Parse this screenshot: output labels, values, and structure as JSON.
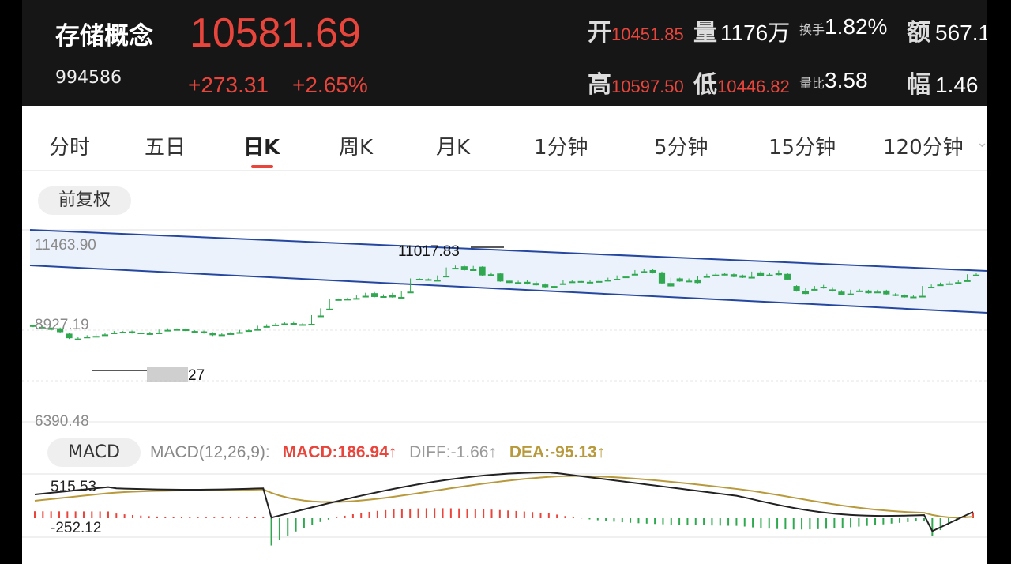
{
  "header": {
    "name": "存储概念",
    "code": "994586",
    "price": "10581.69",
    "change": "+273.31",
    "change_pct": "+2.65%",
    "stats": {
      "open_label": "开",
      "open_value": "10451.85",
      "volume_label": "量",
      "volume_value": "1176万",
      "turnover_label": "换手",
      "turnover_value": "1.82%",
      "amount_label": "额",
      "amount_value": "567.1",
      "high_label": "高",
      "high_value": "10597.50",
      "low_label": "低",
      "low_value": "10446.82",
      "vol_ratio_label": "量比",
      "vol_ratio_value": "3.58",
      "amplitude_label": "幅",
      "amplitude_value": "1.46"
    }
  },
  "tabs": [
    "分时",
    "五日",
    "日K",
    "周K",
    "月K",
    "1分钟",
    "5分钟",
    "15分钟",
    "120分钟"
  ],
  "active_tab": "日K",
  "adjust_button": "前复权",
  "chart": {
    "y_labels": [
      "11463.90",
      "8927.19",
      "6390.48"
    ],
    "max_annotation": "11017.83",
    "min_annotation": "27"
  },
  "macd": {
    "button": "MACD",
    "params": "MACD(12,26,9):",
    "macd": "MACD:186.94↑",
    "diff": "DIFF:-1.66↑",
    "dea": "DEA:-95.13↑",
    "y_top": "515.53",
    "y_bottom": "-252.12"
  },
  "colors": {
    "up": "#e8453c",
    "down": "#2fa84f",
    "channel": "#2547a0",
    "dea": "#b89a3c"
  },
  "chart_data": {
    "type": "candlestick",
    "ylim": [
      6390.48,
      11463.9
    ],
    "candles": [
      [
        8950,
        8950,
        8900,
        8890
      ],
      [
        8900,
        8930,
        8880,
        8870
      ],
      [
        8880,
        8860,
        8820,
        8800
      ],
      [
        8860,
        8880,
        8760,
        8750
      ],
      [
        8720,
        8730,
        8600,
        8580
      ],
      [
        8590,
        8640,
        8580,
        8560
      ],
      [
        8640,
        8680,
        8630,
        8620
      ],
      [
        8660,
        8720,
        8650,
        8640
      ],
      [
        8700,
        8740,
        8690,
        8680
      ],
      [
        8750,
        8790,
        8740,
        8730
      ],
      [
        8770,
        8790,
        8760,
        8750
      ],
      [
        8780,
        8800,
        8740,
        8720
      ],
      [
        8750,
        8770,
        8730,
        8710
      ],
      [
        8730,
        8770,
        8720,
        8710
      ],
      [
        8750,
        8830,
        8740,
        8730
      ],
      [
        8820,
        8860,
        8810,
        8800
      ],
      [
        8840,
        8860,
        8830,
        8820
      ],
      [
        8840,
        8860,
        8790,
        8780
      ],
      [
        8790,
        8810,
        8760,
        8750
      ],
      [
        8780,
        8800,
        8740,
        8720
      ],
      [
        8740,
        8760,
        8680,
        8660
      ],
      [
        8700,
        8750,
        8690,
        8680
      ],
      [
        8730,
        8770,
        8720,
        8710
      ],
      [
        8760,
        8820,
        8750,
        8740
      ],
      [
        8810,
        8850,
        8800,
        8790
      ],
      [
        8840,
        8930,
        8830,
        8820
      ],
      [
        8920,
        8970,
        8910,
        8900
      ],
      [
        8960,
        9000,
        8950,
        8940
      ],
      [
        8990,
        9020,
        8980,
        8970
      ],
      [
        9000,
        9030,
        8970,
        8960
      ],
      [
        8970,
        9000,
        8960,
        8950
      ],
      [
        8980,
        9210,
        8970,
        8960
      ],
      [
        9200,
        9390,
        9190,
        9180
      ],
      [
        9380,
        9640,
        9370,
        9360
      ],
      [
        9630,
        9650,
        9610,
        9600
      ],
      [
        9640,
        9670,
        9630,
        9620
      ],
      [
        9660,
        9730,
        9650,
        9640
      ],
      [
        9720,
        9800,
        9710,
        9700
      ],
      [
        9790,
        9820,
        9690,
        9680
      ],
      [
        9710,
        9760,
        9700,
        9690
      ],
      [
        9750,
        9800,
        9680,
        9670
      ],
      [
        9690,
        9840,
        9680,
        9670
      ],
      [
        9830,
        10180,
        9820,
        9810
      ],
      [
        10170,
        10190,
        10150,
        10140
      ],
      [
        10160,
        10180,
        10130,
        10120
      ],
      [
        10140,
        10260,
        10130,
        10120
      ],
      [
        10250,
        10470,
        10240,
        10230
      ],
      [
        10460,
        10520,
        10440,
        10430
      ],
      [
        10500,
        10550,
        10400,
        10380
      ],
      [
        10420,
        10510,
        10410,
        10400
      ],
      [
        10490,
        10500,
        10260,
        10250
      ],
      [
        10290,
        10340,
        10280,
        10270
      ],
      [
        10310,
        10320,
        10100,
        10090
      ],
      [
        10120,
        10150,
        10060,
        10050
      ],
      [
        10080,
        10120,
        10050,
        10040
      ],
      [
        10090,
        10140,
        10030,
        10020
      ],
      [
        10060,
        10100,
        10000,
        9990
      ],
      [
        10020,
        10050,
        9950,
        9940
      ],
      [
        9980,
        10080,
        9970,
        9960
      ],
      [
        10050,
        10130,
        10040,
        10030
      ],
      [
        10100,
        10140,
        10090,
        10080
      ],
      [
        10110,
        10150,
        10070,
        10060
      ],
      [
        10090,
        10130,
        10080,
        10070
      ],
      [
        10110,
        10160,
        10100,
        10090
      ],
      [
        10140,
        10200,
        10130,
        10120
      ],
      [
        10170,
        10260,
        10160,
        10150
      ],
      [
        10230,
        10320,
        10220,
        10210
      ],
      [
        10300,
        10400,
        10290,
        10280
      ],
      [
        10370,
        10420,
        10360,
        10350
      ],
      [
        10400,
        10430,
        10320,
        10310
      ],
      [
        10340,
        10360,
        10050,
        10040
      ],
      [
        10060,
        10200,
        9970,
        9960
      ],
      [
        10180,
        10200,
        10100,
        10090
      ],
      [
        10120,
        10180,
        10110,
        10100
      ],
      [
        10150,
        10240,
        10060,
        10050
      ],
      [
        10240,
        10300,
        10230,
        10220
      ],
      [
        10280,
        10330,
        10270,
        10260
      ],
      [
        10300,
        10320,
        10270,
        10260
      ],
      [
        10290,
        10310,
        10220,
        10210
      ],
      [
        10260,
        10280,
        10200,
        10190
      ],
      [
        10220,
        10360,
        10210,
        10200
      ],
      [
        10340,
        10370,
        10240,
        10230
      ],
      [
        10280,
        10330,
        10270,
        10260
      ],
      [
        10330,
        10390,
        10270,
        10260
      ],
      [
        10300,
        10320,
        10150,
        10140
      ],
      [
        9980,
        10000,
        9840,
        9830
      ],
      [
        9850,
        9920,
        9770,
        9760
      ],
      [
        9900,
        9980,
        9890,
        9880
      ],
      [
        9960,
        10010,
        9920,
        9910
      ],
      [
        9890,
        9950,
        9840,
        9830
      ],
      [
        9830,
        9870,
        9750,
        9740
      ],
      [
        9780,
        9880,
        9770,
        9760
      ],
      [
        9860,
        9900,
        9850,
        9840
      ],
      [
        9860,
        9880,
        9790,
        9780
      ],
      [
        9830,
        9880,
        9820,
        9810
      ],
      [
        9860,
        9880,
        9760,
        9750
      ],
      [
        9760,
        9790,
        9720,
        9710
      ],
      [
        9740,
        9760,
        9680,
        9670
      ],
      [
        9700,
        9740,
        9690,
        9680
      ],
      [
        9720,
        9980,
        9710,
        9700
      ],
      [
        9960,
        10020,
        9950,
        9940
      ],
      [
        10020,
        10070,
        10010,
        10000
      ],
      [
        10050,
        10100,
        10040,
        10030
      ],
      [
        10080,
        10140,
        10070,
        10060
      ],
      [
        10130,
        10290,
        10120,
        10110
      ],
      [
        10280,
        10330,
        10270,
        10260
      ]
    ],
    "channel_upper": [
      [
        0,
        11463.9
      ],
      [
        1,
        10500
      ]
    ],
    "macd_series": "DIFF, DEA, MACD histogram"
  }
}
